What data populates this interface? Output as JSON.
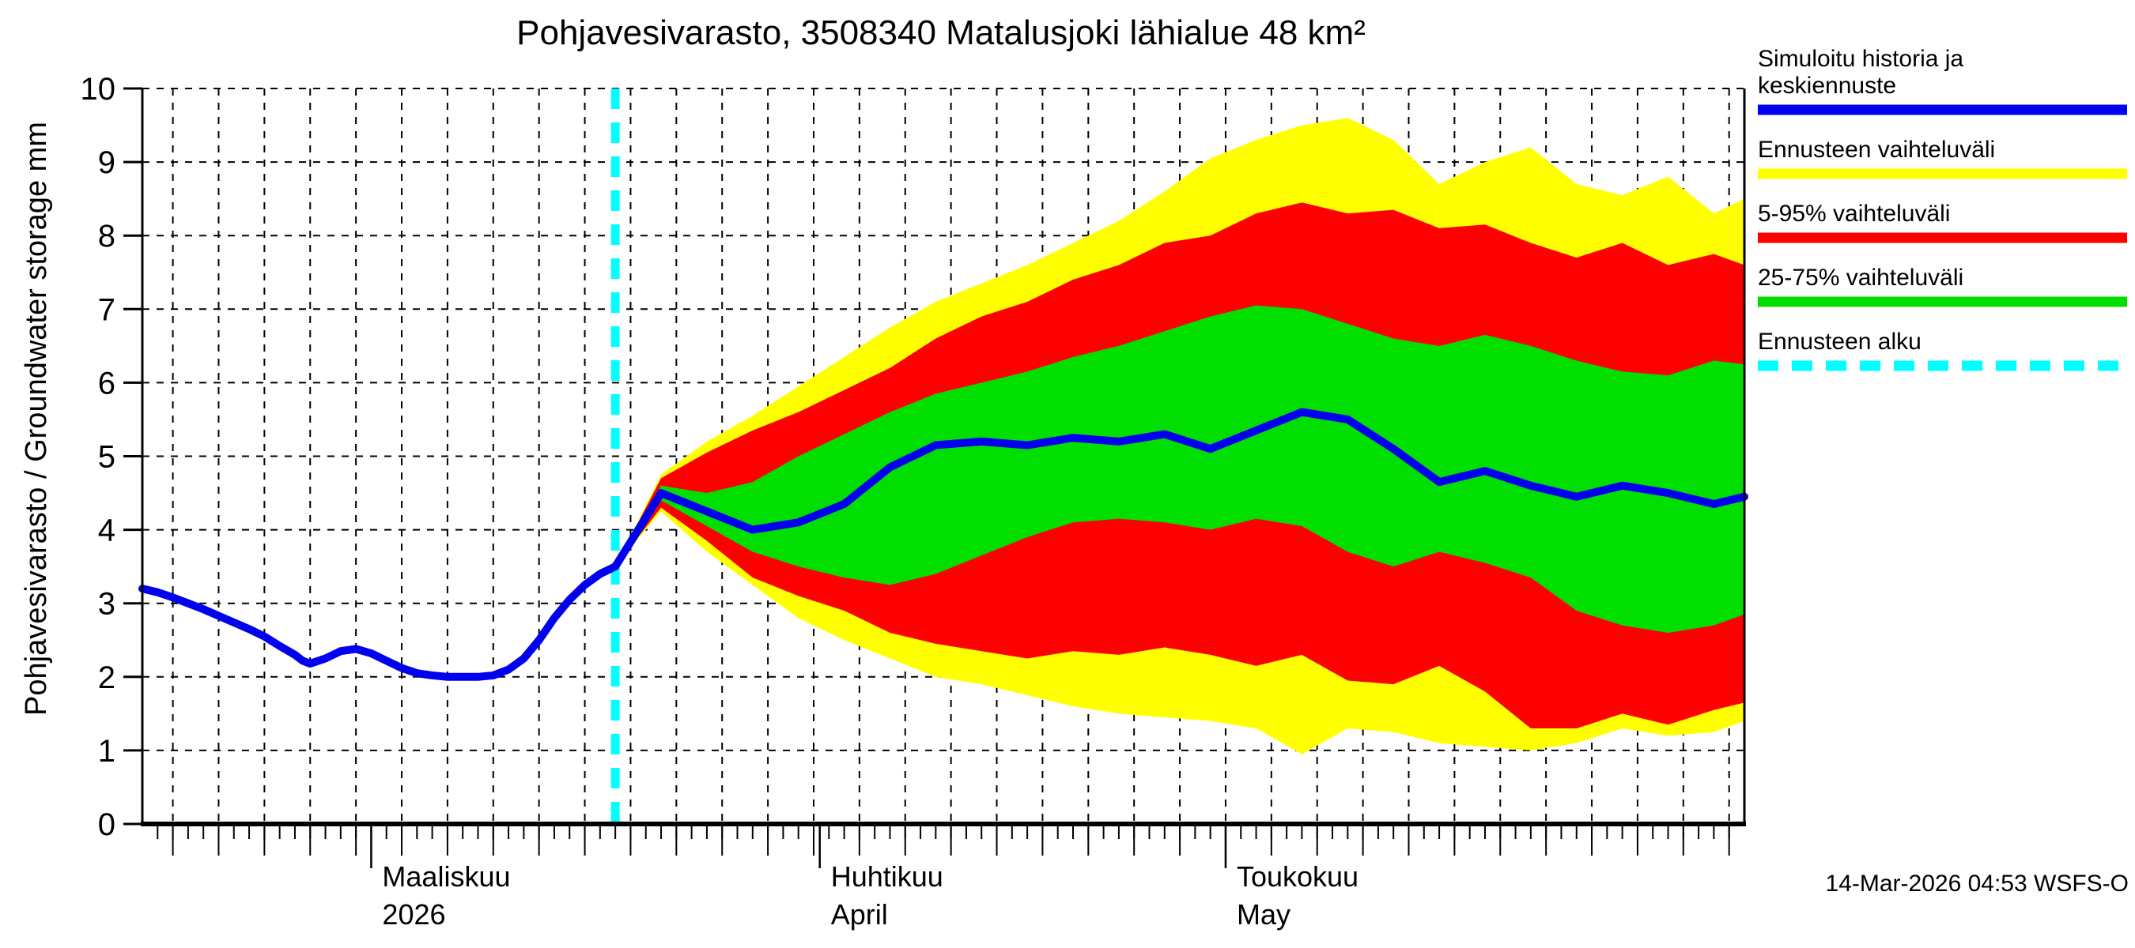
{
  "title": "Pohjavesivarasto, 3508340 Matalusjoki lähialue 48 km²",
  "y_axis": {
    "label": "Pohjavesivarasto / Groundwater storage      mm",
    "tick_labels": [
      "0",
      "1",
      "2",
      "3",
      "4",
      "5",
      "6",
      "7",
      "8",
      "9",
      "10"
    ]
  },
  "footer": {
    "timestamp": "14-Mar-2026 04:53 WSFS-O"
  },
  "legend": {
    "items": [
      {
        "lines": [
          "Simuloitu historia ja",
          "keskiennuste"
        ],
        "color": "#0000EE",
        "style": "solid",
        "name": "legend-simulated-history-median"
      },
      {
        "lines": [
          "Ennusteen vaihteluväli"
        ],
        "color": "#FFFF00",
        "style": "solid",
        "name": "legend-forecast-range"
      },
      {
        "lines": [
          "5-95% vaihteluväli"
        ],
        "color": "#FF0000",
        "style": "solid",
        "name": "legend-5-95-range"
      },
      {
        "lines": [
          "25-75% vaihteluväli"
        ],
        "color": "#00DF00",
        "style": "solid",
        "name": "legend-25-75-range"
      },
      {
        "lines": [
          "Ennusteen alku"
        ],
        "color": "#00FFFF",
        "style": "dashed",
        "name": "legend-forecast-start"
      }
    ]
  },
  "chart_data": {
    "type": "area",
    "title": "Pohjavesivarasto, 3508340 Matalusjoki lähialue 48 km²",
    "ylabel": "Pohjavesivarasto / Groundwater storage (mm)",
    "ylim": [
      0,
      10
    ],
    "grid": true,
    "legend_position": "outside-right",
    "colors": {
      "median_and_history": "#0000EE",
      "forecast_minmax": "#FFFF00",
      "band_5_95": "#FF0000",
      "band_25_75": "#00DF00",
      "forecast_start_line": "#00FFFF"
    },
    "x_total_days": 105,
    "forecast_start_day": 31,
    "months": [
      {
        "label": "Maaliskuu",
        "sublabel": "2026",
        "day": 15
      },
      {
        "label": "Huhtikuu",
        "sublabel": "April",
        "day": 44.4
      },
      {
        "label": "Toukokuu",
        "sublabel": "May",
        "day": 71
      }
    ],
    "history": {
      "name": "Simuloitu historia",
      "days": [
        0,
        1,
        2,
        3,
        4,
        5,
        6,
        7,
        8,
        9,
        10,
        10.5,
        11,
        12,
        13,
        14,
        15,
        16,
        17,
        18,
        19,
        20,
        21,
        22,
        23,
        24,
        25,
        26,
        27,
        28,
        29,
        30,
        31
      ],
      "values": [
        3.2,
        3.15,
        3.08,
        3.0,
        2.92,
        2.83,
        2.74,
        2.65,
        2.55,
        2.42,
        2.3,
        2.22,
        2.18,
        2.25,
        2.35,
        2.38,
        2.32,
        2.22,
        2.12,
        2.05,
        2.02,
        2.0,
        2.0,
        2.0,
        2.02,
        2.1,
        2.25,
        2.5,
        2.8,
        3.05,
        3.25,
        3.4,
        3.5
      ]
    },
    "forecast": {
      "days": [
        31,
        34,
        37,
        40,
        43,
        46,
        49,
        52,
        55,
        58,
        61,
        64,
        67,
        70,
        73,
        76,
        79,
        82,
        85,
        88,
        91,
        94,
        97,
        100,
        103,
        105
      ],
      "series": [
        {
          "name": "keskiennuste (median)",
          "values": [
            3.5,
            4.5,
            4.25,
            4.0,
            4.1,
            4.35,
            4.85,
            5.15,
            5.2,
            5.15,
            5.25,
            5.2,
            5.3,
            5.1,
            5.35,
            5.6,
            5.5,
            5.1,
            4.65,
            4.8,
            4.6,
            4.45,
            4.6,
            4.5,
            4.35,
            4.45
          ]
        },
        {
          "name": "max (ennusteen vaihteluväli ylä)",
          "values": [
            3.5,
            4.75,
            5.2,
            5.55,
            5.95,
            6.35,
            6.75,
            7.1,
            7.35,
            7.6,
            7.9,
            8.2,
            8.6,
            9.05,
            9.3,
            9.5,
            9.6,
            9.3,
            8.7,
            9.0,
            9.2,
            8.7,
            8.55,
            8.8,
            8.3,
            8.5
          ]
        },
        {
          "name": "95%",
          "values": [
            3.5,
            4.7,
            5.05,
            5.35,
            5.6,
            5.9,
            6.2,
            6.6,
            6.9,
            7.1,
            7.4,
            7.6,
            7.9,
            8.0,
            8.3,
            8.45,
            8.3,
            8.35,
            8.1,
            8.15,
            7.9,
            7.7,
            7.9,
            7.6,
            7.75,
            7.6
          ]
        },
        {
          "name": "75%",
          "values": [
            3.5,
            4.6,
            4.5,
            4.65,
            5.0,
            5.3,
            5.6,
            5.85,
            6.0,
            6.15,
            6.35,
            6.5,
            6.7,
            6.9,
            7.05,
            7.0,
            6.8,
            6.6,
            6.5,
            6.65,
            6.5,
            6.3,
            6.15,
            6.1,
            6.3,
            6.25
          ]
        },
        {
          "name": "25%",
          "values": [
            3.5,
            4.4,
            4.05,
            3.7,
            3.5,
            3.35,
            3.25,
            3.4,
            3.65,
            3.9,
            4.1,
            4.15,
            4.1,
            4.0,
            4.15,
            4.05,
            3.7,
            3.5,
            3.7,
            3.55,
            3.35,
            2.9,
            2.7,
            2.6,
            2.7,
            2.85
          ]
        },
        {
          "name": "5%",
          "values": [
            3.5,
            4.3,
            3.85,
            3.35,
            3.1,
            2.9,
            2.6,
            2.45,
            2.35,
            2.25,
            2.35,
            2.3,
            2.4,
            2.3,
            2.15,
            2.3,
            1.95,
            1.9,
            2.15,
            1.8,
            1.3,
            1.3,
            1.5,
            1.35,
            1.55,
            1.65
          ]
        },
        {
          "name": "min (ennusteen vaihteluväli ala)",
          "values": [
            3.5,
            4.25,
            3.7,
            3.25,
            2.8,
            2.5,
            2.25,
            2.0,
            1.9,
            1.75,
            1.6,
            1.5,
            1.45,
            1.4,
            1.3,
            0.95,
            1.3,
            1.25,
            1.1,
            1.05,
            1.0,
            1.1,
            1.3,
            1.2,
            1.25,
            1.4
          ]
        }
      ]
    }
  }
}
